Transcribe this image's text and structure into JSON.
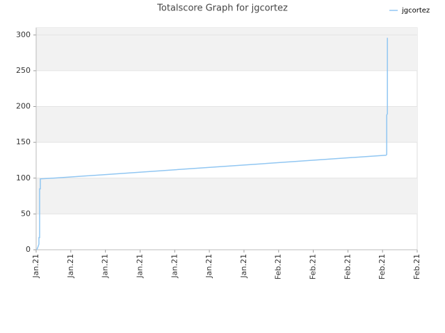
{
  "chart_data": {
    "type": "line",
    "title": "Totalscore Graph for jgcortez",
    "x": [
      0.02,
      0.06,
      0.08,
      0.08,
      0.1,
      0.1,
      0.12,
      0.12,
      0.5,
      10.1,
      10.12,
      10.12,
      10.14,
      10.14
    ],
    "series": [
      {
        "name": "jgcortez",
        "color": "#90c6f2",
        "values": [
          0,
          5,
          8,
          17,
          17,
          85,
          85,
          99,
          100,
          132,
          133,
          188,
          190,
          296
        ]
      }
    ],
    "xlim": [
      0,
      11
    ],
    "xticks": [
      {
        "value": 0,
        "label": "Jan.21"
      },
      {
        "value": 1,
        "label": "Jan.21"
      },
      {
        "value": 2,
        "label": "Jan.21"
      },
      {
        "value": 3,
        "label": "Jan.21"
      },
      {
        "value": 4,
        "label": "Jan.21"
      },
      {
        "value": 5,
        "label": "Jan.21"
      },
      {
        "value": 6,
        "label": "Jan.21"
      },
      {
        "value": 7,
        "label": "Feb.21"
      },
      {
        "value": 8,
        "label": "Feb.21"
      },
      {
        "value": 9,
        "label": "Feb.21"
      },
      {
        "value": 10,
        "label": "Feb.21"
      },
      {
        "value": 11,
        "label": "Feb.21"
      }
    ],
    "ylim": [
      0,
      310
    ],
    "yticks": [
      0,
      50,
      100,
      150,
      200,
      250,
      300
    ],
    "grid": true,
    "legend": "top-right"
  }
}
